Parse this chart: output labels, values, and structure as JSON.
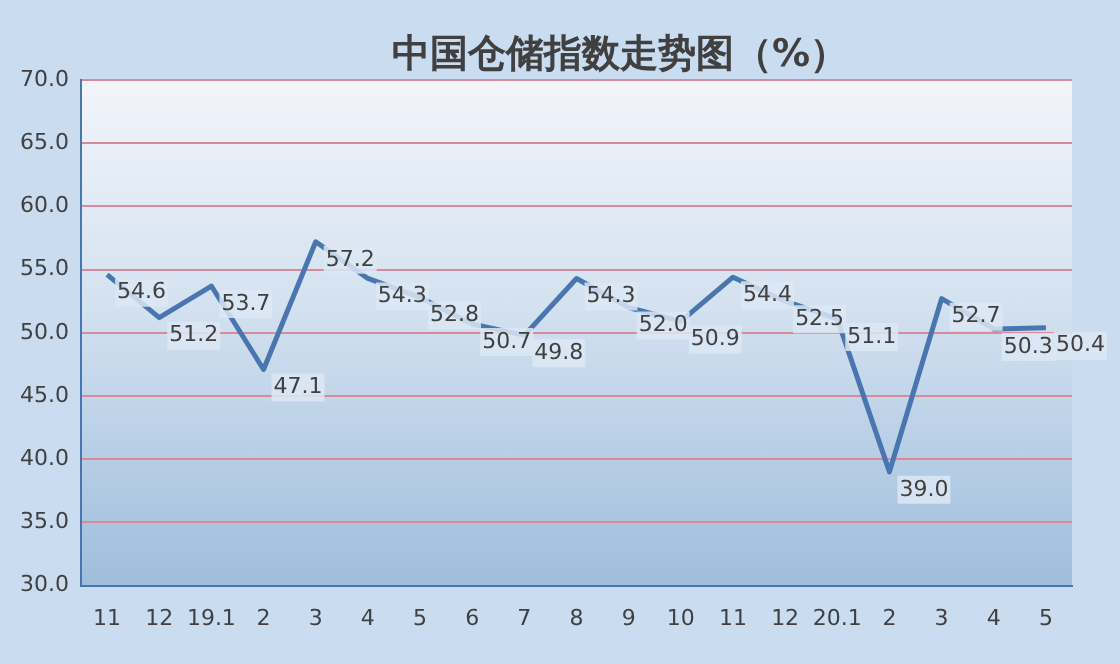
{
  "chart_data": {
    "type": "line",
    "title": "中国仓储指数走势图（%）",
    "categories": [
      "11",
      "12",
      "19.1",
      "2",
      "3",
      "4",
      "5",
      "6",
      "7",
      "8",
      "9",
      "10",
      "11",
      "12",
      "20.1",
      "2",
      "3",
      "4",
      "5"
    ],
    "series": [
      {
        "color": "#4a76b0",
        "values": [
          54.6,
          51.2,
          53.7,
          47.1,
          57.2,
          54.3,
          52.8,
          50.7,
          49.8,
          54.3,
          52.0,
          50.9,
          54.4,
          52.5,
          51.1,
          39.0,
          52.7,
          50.3,
          50.4
        ],
        "value_labels": [
          "54.6",
          "51.2",
          "53.7",
          "47.1",
          "57.2",
          "54.3",
          "52.8",
          "50.7",
          "49.8",
          "54.3",
          "52.0",
          "50.9",
          "54.4",
          "52.5",
          "51.1",
          "39.0",
          "52.7",
          "50.3",
          "50.4"
        ]
      }
    ],
    "ylim": [
      30,
      70
    ],
    "yticks": [
      {
        "value": 30,
        "label": "30.0"
      },
      {
        "value": 35,
        "label": "35.0"
      },
      {
        "value": 40,
        "label": "40.0"
      },
      {
        "value": 45,
        "label": "45.0"
      },
      {
        "value": 50,
        "label": "50.0"
      },
      {
        "value": 55,
        "label": "55.0"
      },
      {
        "value": 60,
        "label": "60.0"
      },
      {
        "value": 65,
        "label": "65.0"
      },
      {
        "value": 70,
        "label": "70.0"
      }
    ],
    "grid": "y",
    "legend": false,
    "marker": "none",
    "line_style": "solid"
  }
}
